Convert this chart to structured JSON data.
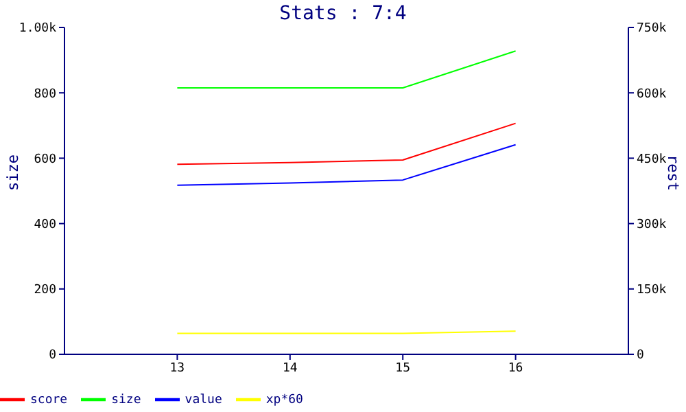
{
  "chart_data": {
    "type": "line",
    "title": "Stats : 7:4",
    "ylabel": "size",
    "y2label": "rest",
    "x": [
      13,
      14,
      15,
      16
    ],
    "xlim": [
      12,
      17
    ],
    "xticks": [
      13,
      14,
      15,
      16
    ],
    "ylim": [
      0,
      1000
    ],
    "yticks": [
      0,
      200,
      400,
      600,
      800,
      {
        "value": 1000,
        "label": "1.00k"
      }
    ],
    "y2lim": [
      0,
      750000
    ],
    "y2ticks": [
      0,
      {
        "value": 150000,
        "label": "150k"
      },
      {
        "value": 300000,
        "label": "300k"
      },
      {
        "value": 450000,
        "label": "450k"
      },
      {
        "value": 600000,
        "label": "600k"
      },
      {
        "value": 750000,
        "label": "750k"
      }
    ],
    "series": [
      {
        "name": "score",
        "color": "#ff0000",
        "axis": "y2",
        "values": [
          436000,
          440000,
          446000,
          530000
        ]
      },
      {
        "name": "size",
        "color": "#00ff00",
        "values": [
          815,
          815,
          815,
          928
        ]
      },
      {
        "name": "value",
        "color": "#0000ff",
        "axis": "y2",
        "values": [
          388000,
          393000,
          400000,
          481000
        ]
      },
      {
        "name": "xp*60",
        "color": "#ffff00",
        "axis": "y2",
        "values": [
          48000,
          48000,
          48000,
          53000
        ]
      }
    ],
    "grid": false,
    "legend": "bottom left",
    "marker": "none",
    "line_style": "solid"
  }
}
